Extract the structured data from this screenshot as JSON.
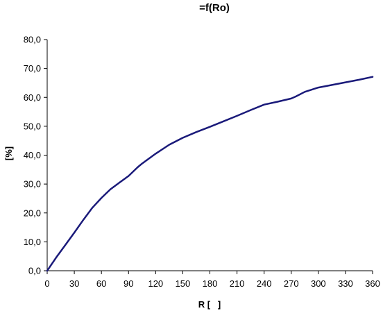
{
  "chart_data": {
    "type": "line",
    "title": "=f(Ro)",
    "xlabel": "R [   ]",
    "ylabel": "[%]",
    "xlim": [
      0,
      360
    ],
    "ylim": [
      0,
      80
    ],
    "x_ticks": [
      0,
      30,
      60,
      90,
      120,
      150,
      180,
      210,
      240,
      270,
      300,
      330,
      360
    ],
    "y_ticks": [
      "0,0",
      "10,0",
      "20,0",
      "30,0",
      "40,0",
      "50,0",
      "60,0",
      "70,0",
      "80,0"
    ],
    "y_tick_values": [
      0,
      10,
      20,
      30,
      40,
      50,
      60,
      70,
      80
    ],
    "grid": false,
    "line_color": "#1a1a7a",
    "series": [
      {
        "x": [
          0,
          10,
          20,
          30,
          40,
          50,
          60,
          70,
          80,
          90,
          100,
          105,
          120,
          135,
          150,
          165,
          180,
          195,
          210,
          225,
          240,
          255,
          270,
          275,
          285,
          300,
          315,
          330,
          345,
          360
        ],
        "values": [
          0,
          4.6,
          8.9,
          13.2,
          17.6,
          21.8,
          25.2,
          28.2,
          30.5,
          32.8,
          35.8,
          37.1,
          40.5,
          43.6,
          46.0,
          48.0,
          49.8,
          51.7,
          53.6,
          55.6,
          57.5,
          58.5,
          59.6,
          60.3,
          61.9,
          63.4,
          64.3,
          65.2,
          66.1,
          67.1
        ]
      }
    ]
  }
}
